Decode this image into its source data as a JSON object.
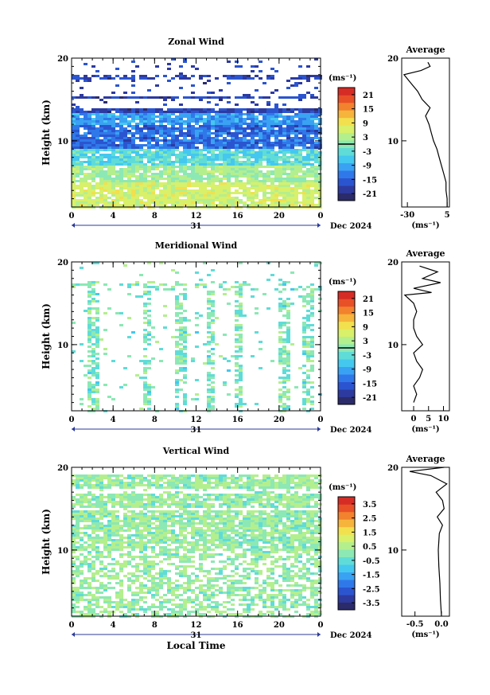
{
  "chart_data": [
    {
      "type": "heatmap",
      "title": "Zonal Wind",
      "ylabel": "Height (km)",
      "y_ticks": [
        "20",
        "10"
      ],
      "ylim": [
        2,
        20
      ],
      "xlim": [
        0,
        24
      ],
      "x_ticks": [
        "0",
        "4",
        "8",
        "12",
        "16",
        "20",
        "0"
      ],
      "date_label": "31",
      "month_label": "Dec 2024",
      "colorbar": {
        "unit": "(ms⁻¹)",
        "ticks": [
          "21",
          "15",
          "9",
          "3",
          "-3",
          "-9",
          "-15",
          "-21"
        ],
        "min": -24,
        "max": 24,
        "contour_at": 0
      },
      "seed": 11,
      "profile": {
        "title": "Average",
        "xlabel": "(ms⁻¹)",
        "x_ticks": [
          "-30",
          "5"
        ],
        "x_tick_values": [
          -30,
          5
        ],
        "xlim": [
          -35,
          7
        ],
        "y_ticks": [
          "20",
          "10"
        ],
        "points": [
          [
            5,
            2
          ],
          [
            5,
            3
          ],
          [
            4,
            4
          ],
          [
            4,
            5
          ],
          [
            2,
            6
          ],
          [
            0,
            7
          ],
          [
            -2,
            8
          ],
          [
            -4,
            9
          ],
          [
            -7,
            10
          ],
          [
            -9,
            11
          ],
          [
            -11,
            12
          ],
          [
            -14,
            13
          ],
          [
            -10,
            14
          ],
          [
            -17,
            15
          ],
          [
            -21,
            16
          ],
          [
            -27,
            17
          ],
          [
            -33,
            18
          ],
          [
            -18,
            18.5
          ],
          [
            -10,
            19
          ],
          [
            -12,
            19.5
          ]
        ]
      }
    },
    {
      "type": "heatmap",
      "title": "Meridional Wind",
      "ylabel": "Height (km)",
      "y_ticks": [
        "20",
        "10"
      ],
      "ylim": [
        2,
        20
      ],
      "xlim": [
        0,
        24
      ],
      "x_ticks": [
        "0",
        "4",
        "8",
        "12",
        "16",
        "20",
        "0"
      ],
      "date_label": "31",
      "month_label": "Dec 2024",
      "colorbar": {
        "unit": "(ms⁻¹)",
        "ticks": [
          "21",
          "15",
          "9",
          "3",
          "-3",
          "-9",
          "-15",
          "-21"
        ],
        "min": -24,
        "max": 24,
        "contour_at": 0
      },
      "seed": 23,
      "profile": {
        "title": "Average",
        "xlabel": "(ms⁻¹)",
        "x_ticks": [
          "0",
          "5",
          "10"
        ],
        "x_tick_values": [
          0,
          5,
          10
        ],
        "xlim": [
          -4,
          12
        ],
        "y_ticks": [
          "20",
          "10"
        ],
        "points": [
          [
            0,
            3
          ],
          [
            1,
            4
          ],
          [
            0,
            5
          ],
          [
            2,
            6
          ],
          [
            3,
            7
          ],
          [
            1,
            8
          ],
          [
            0,
            9
          ],
          [
            3,
            10
          ],
          [
            1,
            11
          ],
          [
            0,
            12
          ],
          [
            0,
            13
          ],
          [
            1,
            14
          ],
          [
            0,
            15
          ],
          [
            -3,
            16
          ],
          [
            6,
            16.3
          ],
          [
            0,
            16.8
          ],
          [
            9,
            17.5
          ],
          [
            3,
            18
          ],
          [
            8,
            18.8
          ],
          [
            2,
            19.5
          ]
        ]
      }
    },
    {
      "type": "heatmap",
      "title": "Vertical Wind",
      "ylabel": "Height (km)",
      "y_ticks": [
        "20",
        "10"
      ],
      "ylim": [
        2,
        20
      ],
      "xlim": [
        0,
        24
      ],
      "x_ticks": [
        "0",
        "4",
        "8",
        "12",
        "16",
        "20",
        "0"
      ],
      "date_label": "31",
      "month_label": "Dec 2024",
      "xlabel": "Local Time",
      "colorbar": {
        "unit": "(ms⁻¹)",
        "ticks": [
          "3.5",
          "2.5",
          "1.5",
          "0.5",
          "-0.5",
          "-1.5",
          "-2.5",
          "-3.5"
        ],
        "min": -4,
        "max": 4
      },
      "seed": 37,
      "profile": {
        "title": "Average",
        "xlabel": "(ms⁻¹)",
        "x_ticks": [
          "-0.5",
          "0.0"
        ],
        "x_tick_values": [
          -0.5,
          0.0
        ],
        "xlim": [
          -0.75,
          0.15
        ],
        "y_ticks": [
          "20",
          "10"
        ],
        "points": [
          [
            0.0,
            2
          ],
          [
            -0.02,
            4
          ],
          [
            -0.03,
            6
          ],
          [
            -0.05,
            8
          ],
          [
            -0.06,
            10
          ],
          [
            -0.04,
            12
          ],
          [
            0.02,
            13
          ],
          [
            -0.08,
            14
          ],
          [
            0.05,
            15
          ],
          [
            0.02,
            16
          ],
          [
            -0.1,
            17
          ],
          [
            0.1,
            18
          ],
          [
            -0.2,
            19
          ],
          [
            -0.6,
            19.5
          ],
          [
            0.05,
            20
          ]
        ]
      }
    }
  ]
}
